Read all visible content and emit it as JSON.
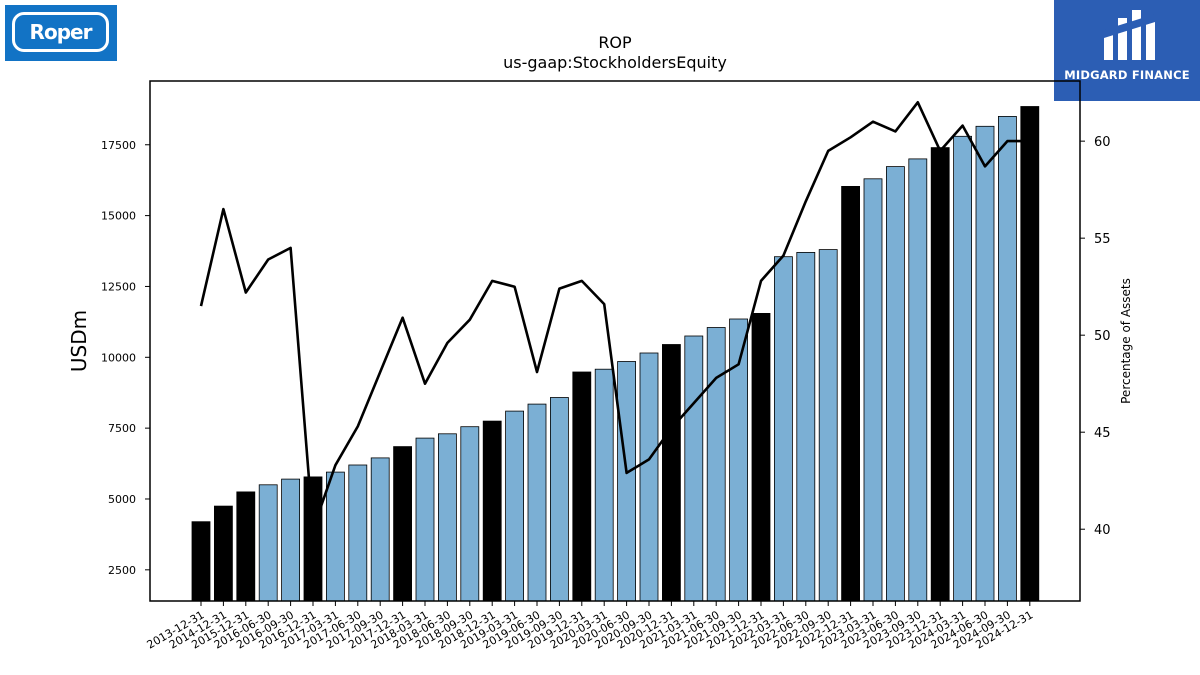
{
  "logos": {
    "left_text": "Roper",
    "right_text": "MIDGARD FINANCE"
  },
  "chart_data": {
    "type": "bar",
    "title": "ROP",
    "subtitle": "us-gaap:StockholdersEquity",
    "ylabel": "USDm",
    "y2label": "Percentage of Assets",
    "ylim": [
      1400,
      19750
    ],
    "y2lim": [
      36.3,
      63.1
    ],
    "yticks": [
      2500,
      5000,
      7500,
      10000,
      12500,
      15000,
      17500
    ],
    "y2ticks": [
      40,
      45,
      50,
      55,
      60
    ],
    "grid": false,
    "colors": {
      "annual": "#000000",
      "quarterly": "#7bafd4",
      "line": "#000000"
    },
    "categories": [
      "2013-12-31",
      "2014-12-31",
      "2015-12-31",
      "2016-06-30",
      "2016-09-30",
      "2016-12-31",
      "2017-03-31",
      "2017-06-30",
      "2017-09-30",
      "2017-12-31",
      "2018-03-31",
      "2018-06-30",
      "2018-09-30",
      "2018-12-31",
      "2019-03-31",
      "2019-06-30",
      "2019-09-30",
      "2019-12-31",
      "2020-03-31",
      "2020-06-30",
      "2020-09-30",
      "2020-12-31",
      "2021-03-31",
      "2021-06-30",
      "2021-09-30",
      "2021-12-31",
      "2022-03-31",
      "2022-06-30",
      "2022-09-30",
      "2022-12-31",
      "2023-03-31",
      "2023-06-30",
      "2023-09-30",
      "2023-12-31",
      "2024-03-31",
      "2024-06-30",
      "2024-09-30",
      "2024-12-31"
    ],
    "series": [
      {
        "kind": "bar",
        "values": [
          4200,
          4750,
          5250,
          5500,
          5700,
          5780,
          5950,
          6200,
          6450,
          6850,
          7150,
          7300,
          7550,
          7750,
          8100,
          8350,
          8580,
          9480,
          9580,
          9850,
          10150,
          10450,
          10750,
          11050,
          11350,
          11550,
          13550,
          13700,
          13800,
          16030,
          16300,
          16730,
          17000,
          17400,
          17800,
          18150,
          18500,
          18850
        ],
        "annual": [
          true,
          true,
          true,
          false,
          false,
          true,
          false,
          false,
          false,
          true,
          false,
          false,
          false,
          true,
          false,
          false,
          false,
          true,
          false,
          false,
          false,
          true,
          false,
          false,
          false,
          true,
          false,
          false,
          false,
          true,
          false,
          false,
          false,
          true,
          false,
          false,
          false,
          true
        ]
      },
      {
        "kind": "line",
        "axis": "right",
        "values": [
          51.5,
          56.5,
          52.2,
          53.9,
          54.5,
          40.0,
          43.3,
          45.3,
          48.1,
          50.9,
          47.5,
          49.6,
          50.8,
          52.8,
          52.5,
          48.1,
          52.4,
          52.8,
          51.6,
          42.9,
          43.6,
          45.2,
          46.5,
          47.8,
          48.5,
          52.8,
          54.1,
          56.9,
          59.5,
          60.2,
          61.0,
          60.5,
          62.0,
          59.5,
          60.8,
          58.7,
          60.0,
          60.0
        ]
      }
    ]
  }
}
